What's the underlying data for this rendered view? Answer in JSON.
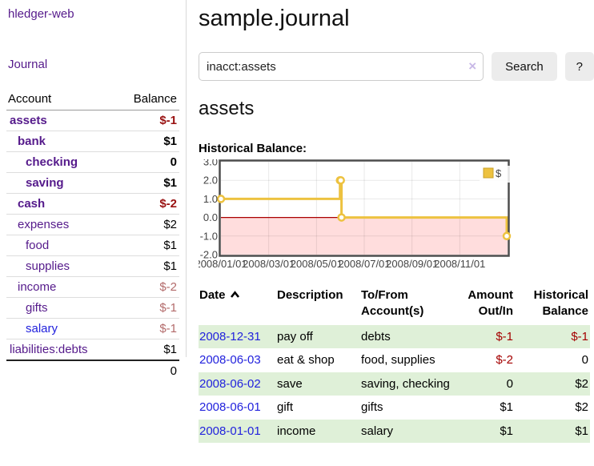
{
  "sidebar": {
    "brand": "hledger-web",
    "journal_link": "Journal",
    "accounts": {
      "header_account": "Account",
      "header_balance": "Balance",
      "rows": [
        {
          "name": "assets",
          "balance": "$-1"
        },
        {
          "name": "bank",
          "balance": "$1"
        },
        {
          "name": "checking",
          "balance": "0"
        },
        {
          "name": "saving",
          "balance": "$1"
        },
        {
          "name": "cash",
          "balance": "$-2"
        },
        {
          "name": "expenses",
          "balance": "$2"
        },
        {
          "name": "food",
          "balance": "$1"
        },
        {
          "name": "supplies",
          "balance": "$1"
        },
        {
          "name": "income",
          "balance": "$-2"
        },
        {
          "name": "gifts",
          "balance": "$-1"
        },
        {
          "name": "salary",
          "balance": "$-1"
        },
        {
          "name": "liabilities:debts",
          "balance": "$1"
        }
      ],
      "total": "0"
    }
  },
  "main": {
    "title": "sample.journal",
    "search": {
      "value": "inacct:assets",
      "clear_icon": "×",
      "search_button": "Search",
      "help_button": "?"
    },
    "heading": "assets",
    "chart_title": "Historical Balance:"
  },
  "register": {
    "headers": {
      "date": "Date",
      "description": "Description",
      "accounts": "To/From\nAccount(s)",
      "amount": "Amount\nOut/In",
      "balance": "Historical\nBalance"
    },
    "rows": [
      {
        "date": "2008-12-31",
        "description": "pay off",
        "accounts": "debts",
        "amount": "$-1",
        "balance": "$-1"
      },
      {
        "date": "2008-06-03",
        "description": "eat & shop",
        "accounts": "food, supplies",
        "amount": "$-2",
        "balance": "0"
      },
      {
        "date": "2008-06-02",
        "description": "save",
        "accounts": "saving, checking",
        "amount": "0",
        "balance": "$2"
      },
      {
        "date": "2008-06-01",
        "description": "gift",
        "accounts": "gifts",
        "amount": "$1",
        "balance": "$2"
      },
      {
        "date": "2008-01-01",
        "description": "income",
        "accounts": "salary",
        "amount": "$1",
        "balance": "$1"
      }
    ]
  },
  "chart_data": {
    "type": "line",
    "step": true,
    "title": "Historical Balance:",
    "x_range": [
      "2008-01-01",
      "2009-01-01"
    ],
    "ylim": [
      -2,
      3
    ],
    "yticks": [
      "3.0",
      "2.0",
      "1.0",
      "0.0",
      "-1.0",
      "-2.0"
    ],
    "xticks": [
      "2008/01/01",
      "2008/03/01",
      "2008/05/01",
      "2008/07/01",
      "2008/09/01",
      "2008/11/01"
    ],
    "series": [
      {
        "name": "$",
        "color": "#edc240",
        "points": [
          [
            "2008-01-01",
            1
          ],
          [
            "2008-06-01",
            2
          ],
          [
            "2008-06-02",
            2
          ],
          [
            "2008-06-03",
            0
          ],
          [
            "2008-12-31",
            -1
          ]
        ]
      }
    ],
    "legend_position": "top-right",
    "grid": true,
    "zero_line_color": "#aa0000",
    "negative_fill": "#ffdddd"
  },
  "colors": {
    "visited_link": "#551a8b",
    "link": "#2222dd",
    "negative_strong": "#991111",
    "negative": "#a40000",
    "negative_muted": "#b36b6b",
    "row_stripe": "#dff0d8",
    "series": "#edc240"
  }
}
